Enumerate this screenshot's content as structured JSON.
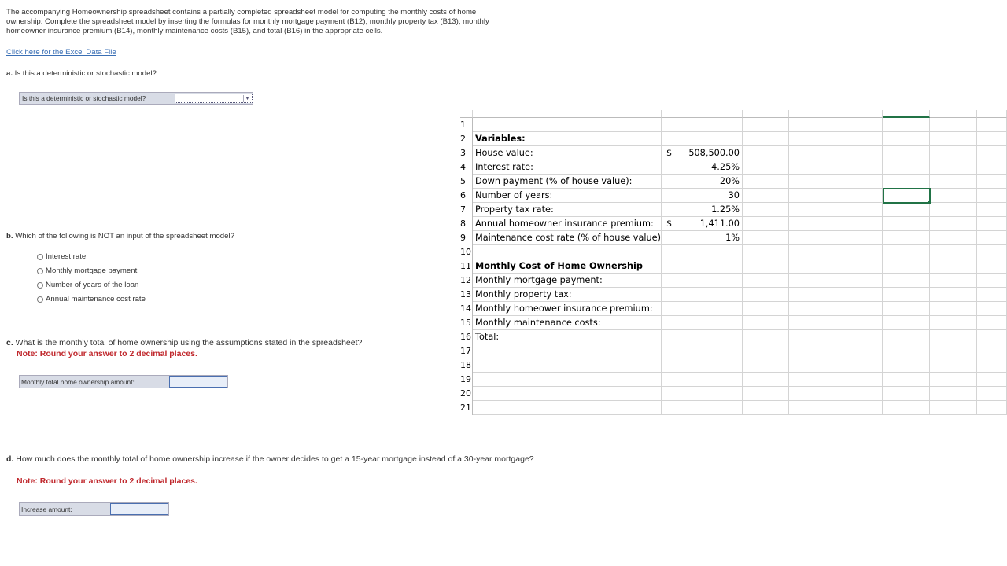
{
  "intro": "The accompanying Homeownership spreadsheet contains a partially completed spreadsheet model for computing the monthly costs of home ownership. Complete the spreadsheet model by inserting the formulas for monthly mortgage payment (B12), monthly property tax (B13), monthly homeowner insurance premium (B14), monthly maintenance costs (B15), and total (B16) in the appropriate cells.",
  "link": "Click here for the Excel Data File",
  "qa": {
    "letter": "a.",
    "text": " Is this a deterministic or stochastic model?",
    "dropdown_label": "Is this a deterministic or stochastic model?",
    "dropdown_value": ""
  },
  "qb": {
    "letter": "b.",
    "text": " Which of the following is NOT an input of the spreadsheet model?",
    "options": [
      "Interest rate",
      "Monthly mortgage payment",
      "Number of years of the loan",
      "Annual maintenance cost rate"
    ]
  },
  "qc": {
    "letter": "c.",
    "text": " What is the monthly total of home ownership using the assumptions stated in the spreadsheet?",
    "note": "Note: Round your answer to 2 decimal places.",
    "input_label": "Monthly total home ownership amount:",
    "input_value": ""
  },
  "qd": {
    "letter": "d.",
    "text": " How much does the monthly total of home ownership increase if the owner decides to get a 15-year mortgage instead of a 30-year mortgage?",
    "note": "Note: Round your answer to 2 decimal places.",
    "input_label": "Increase amount:",
    "input_value": ""
  },
  "sheet": {
    "rows": [
      {
        "n": "1",
        "a": "",
        "cur": "",
        "b": ""
      },
      {
        "n": "2",
        "a": "Variables:",
        "bold": true,
        "cur": "",
        "b": ""
      },
      {
        "n": "3",
        "a": "House value:",
        "cur": "$",
        "b": "508,500.00"
      },
      {
        "n": "4",
        "a": "Interest rate:",
        "cur": "",
        "b": "4.25%"
      },
      {
        "n": "5",
        "a": "Down payment (% of house value):",
        "cur": "",
        "b": "20%"
      },
      {
        "n": "6",
        "a": "Number of years:",
        "cur": "",
        "b": "30"
      },
      {
        "n": "7",
        "a": "Property tax rate:",
        "cur": "",
        "b": "1.25%"
      },
      {
        "n": "8",
        "a": "Annual homeowner insurance premium:",
        "cur": "$",
        "b": "1,411.00"
      },
      {
        "n": "9",
        "a": "Maintenance cost rate (% of house value):",
        "cur": "",
        "b": "1%"
      },
      {
        "n": "10",
        "a": "",
        "cur": "",
        "b": ""
      },
      {
        "n": "11",
        "a": "Monthly Cost of Home Ownership",
        "bold": true,
        "cur": "",
        "b": ""
      },
      {
        "n": "12",
        "a": "Monthly mortgage payment:",
        "cur": "",
        "b": ""
      },
      {
        "n": "13",
        "a": "Monthly property tax:",
        "cur": "",
        "b": ""
      },
      {
        "n": "14",
        "a": "Monthly homeower insurance premium:",
        "cur": "",
        "b": ""
      },
      {
        "n": "15",
        "a": "Monthly maintenance costs:",
        "cur": "",
        "b": ""
      },
      {
        "n": "16",
        "a": "Total:",
        "cur": "",
        "b": ""
      },
      {
        "n": "17",
        "a": "",
        "cur": "",
        "b": ""
      },
      {
        "n": "18",
        "a": "",
        "cur": "",
        "b": ""
      },
      {
        "n": "19",
        "a": "",
        "cur": "",
        "b": ""
      },
      {
        "n": "20",
        "a": "",
        "cur": "",
        "b": ""
      },
      {
        "n": "21",
        "a": "",
        "cur": "",
        "b": ""
      }
    ],
    "selection_color": "#217346"
  }
}
